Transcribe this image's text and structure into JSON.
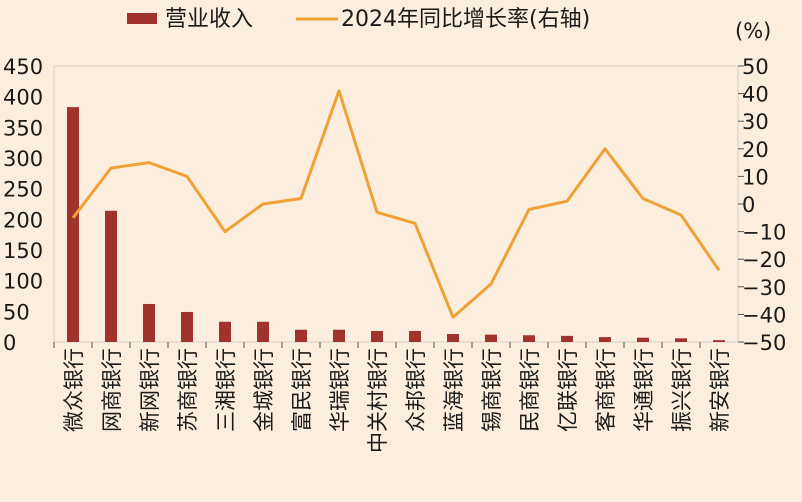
{
  "chart_data": {
    "type": "bar+line",
    "legend": {
      "bar_label": "营业收入",
      "line_label": "2024年同比增长率(右轴)"
    },
    "right_unit": "(%)",
    "left_axis": {
      "range": [
        0,
        450
      ],
      "ticks": [
        "450",
        "400",
        "350",
        "300",
        "250",
        "200",
        "150",
        "100",
        "50",
        "0"
      ]
    },
    "right_axis": {
      "range": [
        -50,
        50
      ],
      "ticks": [
        "50",
        "40",
        "30",
        "20",
        "10",
        "0",
        "-10",
        "-20",
        "-30",
        "-40",
        "-50"
      ]
    },
    "categories": [
      "微众银行",
      "网商银行",
      "新网银行",
      "苏商银行",
      "三湘银行",
      "金城银行",
      "富民银行",
      "华瑞银行",
      "中关村银行",
      "众邦银行",
      "蓝海银行",
      "锡商银行",
      "民商银行",
      "亿联银行",
      "客商银行",
      "华通银行",
      "振兴银行",
      "新安银行"
    ],
    "series": [
      {
        "name": "营业收入",
        "type": "bar",
        "color": "#a0342c",
        "values": [
          383,
          214,
          62,
          49,
          33,
          33,
          20,
          20,
          18,
          18,
          13,
          12,
          11,
          10,
          8,
          7,
          6,
          3
        ]
      },
      {
        "name": "2024年同比增长率(右轴)",
        "type": "line",
        "color": "#eea236",
        "values": [
          -5,
          13,
          15,
          10,
          -10,
          0,
          2,
          41,
          -3,
          -7,
          -41,
          -29,
          -2,
          1,
          20,
          2,
          -4,
          -24
        ]
      }
    ]
  }
}
